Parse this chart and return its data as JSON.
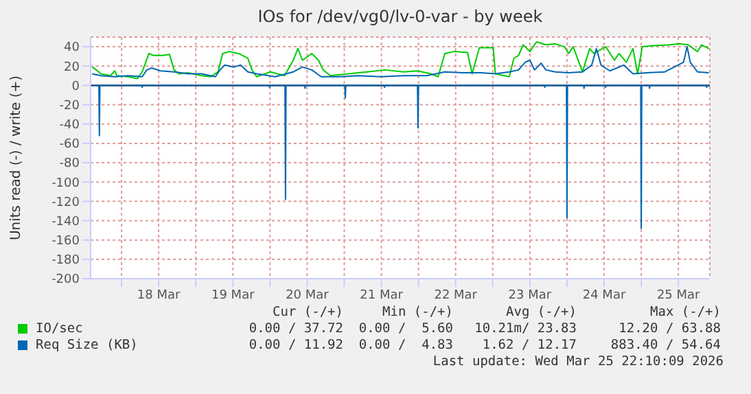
{
  "chart_data": {
    "type": "line",
    "title": "IOs for /dev/vg0/lv-0-var - by week",
    "ylabel": "Units read (-) / write (+)",
    "xlim": [
      "2026-03-17T14:00",
      "2026-03-25T22:10"
    ],
    "xticks": [
      {
        "value": "2026-03-18",
        "label": null
      },
      {
        "value": "2026-03-18T12:00",
        "label": "18 Mar"
      },
      {
        "value": "2026-03-19",
        "label": null
      },
      {
        "value": "2026-03-19T12:00",
        "label": "19 Mar"
      },
      {
        "value": "2026-03-20",
        "label": null
      },
      {
        "value": "2026-03-20T12:00",
        "label": "20 Mar"
      },
      {
        "value": "2026-03-21",
        "label": null
      },
      {
        "value": "2026-03-21T12:00",
        "label": "21 Mar"
      },
      {
        "value": "2026-03-22",
        "label": null
      },
      {
        "value": "2026-03-22T12:00",
        "label": "22 Mar"
      },
      {
        "value": "2026-03-23",
        "label": null
      },
      {
        "value": "2026-03-23T12:00",
        "label": "23 Mar"
      },
      {
        "value": "2026-03-24",
        "label": null
      },
      {
        "value": "2026-03-24T12:00",
        "label": "24 Mar"
      },
      {
        "value": "2026-03-25",
        "label": null
      },
      {
        "value": "2026-03-25T12:00",
        "label": "25 Mar"
      }
    ],
    "ylim": [
      -200,
      50
    ],
    "yticks": [
      -200,
      -180,
      -160,
      -140,
      -120,
      -100,
      -80,
      -60,
      -40,
      -20,
      0,
      20,
      40
    ],
    "grid": true,
    "legend": "bottom",
    "ref_lines": [
      {
        "axis": "y",
        "value": 0,
        "color": "#000000"
      }
    ],
    "series": [
      {
        "name": "IO/sec",
        "color": "#00cc00",
        "x": [
          "2026-03-17T14:30",
          "2026-03-17T15:50",
          "2026-03-17T17:20",
          "2026-03-17T20:20",
          "2026-03-17T21:50",
          "2026-03-17T22:30",
          "2026-03-18T02:10",
          "2026-03-18T05:10",
          "2026-03-18T06:40",
          "2026-03-18T08:10",
          "2026-03-18T08:50",
          "2026-03-18T10:20",
          "2026-03-18T13:20",
          "2026-03-18T15:30",
          "2026-03-18T17:00",
          "2026-03-18T18:30",
          "2026-03-18T21:30",
          "2026-03-19T01:50",
          "2026-03-19T04:50",
          "2026-03-19T07:10",
          "2026-03-19T08:40",
          "2026-03-19T10:50",
          "2026-03-19T13:50",
          "2026-03-19T16:50",
          "2026-03-19T18:10",
          "2026-03-19T19:40",
          "2026-03-20T00:10",
          "2026-03-20T04:40",
          "2026-03-20T07:30",
          "2026-03-20T09:00",
          "2026-03-20T10:30",
          "2026-03-20T13:30",
          "2026-03-20T15:40",
          "2026-03-20T17:10",
          "2026-03-20T19:30",
          "2026-03-21T01:20",
          "2026-03-21T07:20",
          "2026-03-21T13:10",
          "2026-03-21T19:10",
          "2026-03-21T23:40",
          "2026-03-22T04:00",
          "2026-03-22T06:20",
          "2026-03-22T08:30",
          "2026-03-22T11:30",
          "2026-03-22T15:50",
          "2026-03-22T17:20",
          "2026-03-22T19:40",
          "2026-03-23T00:10",
          "2026-03-23T00:50",
          "2026-03-23T05:20",
          "2026-03-23T06:50",
          "2026-03-23T08:20",
          "2026-03-23T09:50",
          "2026-03-23T12:00",
          "2026-03-23T14:10",
          "2026-03-23T17:10",
          "2026-03-23T20:10",
          "2026-03-23T23:10",
          "2026-03-24T00:30",
          "2026-03-24T02:00",
          "2026-03-24T05:00",
          "2026-03-24T07:20",
          "2026-03-24T08:40",
          "2026-03-24T12:30",
          "2026-03-24T15:20",
          "2026-03-24T16:50",
          "2026-03-24T19:10",
          "2026-03-24T21:20",
          "2026-03-24T22:50",
          "2026-03-25T00:20",
          "2026-03-25T03:20",
          "2026-03-25T09:10",
          "2026-03-25T12:10",
          "2026-03-25T15:10",
          "2026-03-25T18:10",
          "2026-03-25T19:30",
          "2026-03-25T21:50"
        ],
        "values": [
          19,
          16,
          12,
          10,
          15,
          10,
          9,
          7,
          14,
          27,
          33,
          31,
          31,
          32,
          16,
          12,
          13,
          10,
          9,
          14,
          33,
          35,
          33,
          28,
          16,
          9,
          14,
          10,
          26,
          38,
          26,
          33,
          26,
          16,
          10,
          12,
          14,
          16,
          14,
          15,
          12,
          9,
          33,
          35,
          34,
          12,
          39,
          39,
          12,
          9,
          28,
          31,
          42,
          35,
          45,
          42,
          43,
          40,
          33,
          40,
          14,
          38,
          33,
          40,
          26,
          33,
          24,
          38,
          12,
          40,
          41,
          42,
          43,
          42,
          35,
          42,
          38
        ]
      },
      {
        "name": "Req Size (KB)",
        "color": "#0066b3",
        "x": [
          "2026-03-17T14:30",
          "2026-03-17T17:20",
          "2026-03-17T21:50",
          "2026-03-18T02:10",
          "2026-03-18T06:40",
          "2026-03-18T08:10",
          "2026-03-18T09:40",
          "2026-03-18T12:40",
          "2026-03-18T17:00",
          "2026-03-18T21:30",
          "2026-03-19T01:50",
          "2026-03-19T06:20",
          "2026-03-19T07:50",
          "2026-03-19T09:20",
          "2026-03-19T12:20",
          "2026-03-19T14:30",
          "2026-03-19T16:50",
          "2026-03-19T19:40",
          "2026-03-20T01:40",
          "2026-03-20T07:30",
          "2026-03-20T10:30",
          "2026-03-20T13:30",
          "2026-03-20T16:30",
          "2026-03-20T22:30",
          "2026-03-21T04:20",
          "2026-03-21T11:50",
          "2026-03-21T19:10",
          "2026-03-22T02:40",
          "2026-03-22T08:30",
          "2026-03-22T14:30",
          "2026-03-22T20:20",
          "2026-03-23T00:50",
          "2026-03-23T05:20",
          "2026-03-23T08:20",
          "2026-03-23T10:30",
          "2026-03-23T12:00",
          "2026-03-23T13:30",
          "2026-03-23T15:40",
          "2026-03-23T17:10",
          "2026-03-23T20:10",
          "2026-03-24T00:30",
          "2026-03-24T05:00",
          "2026-03-24T08:00",
          "2026-03-24T09:30",
          "2026-03-24T11:00",
          "2026-03-24T13:50",
          "2026-03-24T18:20",
          "2026-03-24T21:20",
          "2026-03-25T01:50",
          "2026-03-25T07:40",
          "2026-03-25T10:40",
          "2026-03-25T13:40",
          "2026-03-25T14:50",
          "2026-03-25T15:50",
          "2026-03-25T18:10",
          "2026-03-25T21:50"
        ],
        "values": [
          12,
          10,
          9,
          10,
          9,
          16,
          18,
          15,
          14,
          12,
          12,
          9,
          16,
          21,
          19,
          21,
          14,
          12,
          9,
          14,
          19,
          16,
          9,
          9,
          10,
          9,
          10,
          10,
          14,
          13,
          13,
          12,
          14,
          16,
          24,
          26,
          16,
          23,
          16,
          14,
          13,
          14,
          21,
          38,
          21,
          15,
          21,
          12,
          13,
          14,
          19,
          24,
          40,
          24,
          14,
          13
        ]
      },
      {
        "color": "#0066b3",
        "x": [
          "2026-03-17T14:30",
          "2026-03-17T16:40",
          "2026-03-17T16:50",
          "2026-03-17T17:00",
          "2026-03-18T06:30",
          "2026-03-18T06:40",
          "2026-03-18T06:50",
          "2026-03-19T23:40",
          "2026-03-19T23:50",
          "2026-03-20T00:00",
          "2026-03-20T04:50",
          "2026-03-20T05:00",
          "2026-03-20T05:10",
          "2026-03-20T11:10",
          "2026-03-20T11:20",
          "2026-03-20T11:30",
          "2026-03-21T00:10",
          "2026-03-21T00:20",
          "2026-03-21T00:30",
          "2026-03-21T12:50",
          "2026-03-21T13:00",
          "2026-03-21T13:10",
          "2026-03-21T23:40",
          "2026-03-21T23:50",
          "2026-03-22T00:00",
          "2026-03-23T16:40",
          "2026-03-23T16:50",
          "2026-03-23T17:00",
          "2026-03-23T23:50",
          "2026-03-24T00:00",
          "2026-03-24T00:10",
          "2026-03-24T05:20",
          "2026-03-24T05:30",
          "2026-03-24T05:40",
          "2026-03-24T12:20",
          "2026-03-24T12:30",
          "2026-03-24T12:40",
          "2026-03-24T23:50",
          "2026-03-25T00:00",
          "2026-03-25T00:10",
          "2026-03-25T02:30",
          "2026-03-25T02:40",
          "2026-03-25T02:50",
          "2026-03-25T21:00",
          "2026-03-25T21:10",
          "2026-03-25T21:20",
          "2026-03-25T21:50"
        ],
        "values": [
          0,
          0,
          -52,
          0,
          0,
          -2,
          0,
          0,
          -2,
          0,
          0,
          -118,
          0,
          0,
          -3,
          0,
          0,
          -13,
          0,
          0,
          -2,
          0,
          0,
          -44,
          0,
          0,
          -2,
          0,
          0,
          -137,
          0,
          0,
          -3,
          0,
          0,
          -2,
          0,
          0,
          -148,
          0,
          0,
          -3,
          0,
          0,
          -2,
          0,
          0
        ]
      }
    ],
    "annotations": [
      "Cur (-/+)",
      "Min (-/+)",
      "Avg (-/+)",
      "Max (-/+)",
      "0.00 / 37.72",
      "0.00 /  5.60",
      "10.21m/ 23.83",
      "12.20 / 63.88",
      "0.00 / 11.92",
      "0.00 /  4.83",
      "1.62 / 12.17",
      "883.40 / 54.64",
      "Last update: Wed Mar 25 22:10:09 2026"
    ]
  }
}
